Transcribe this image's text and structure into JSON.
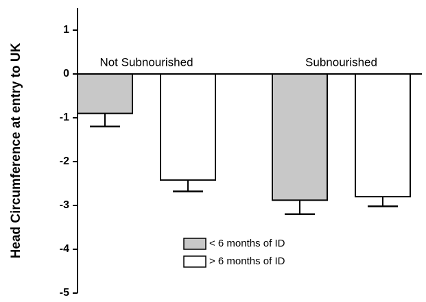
{
  "chart_data": {
    "type": "bar",
    "ylabel": "Head Circumference at entry to UK",
    "categories": [
      "Not  Subnourished",
      "Subnourished"
    ],
    "series": [
      {
        "name": "< 6 months of ID",
        "color": "#c8c8c8",
        "values": [
          -0.9,
          -2.88
        ],
        "errors": [
          0.3,
          0.32
        ]
      },
      {
        "name": "> 6 months of ID",
        "color": "#ffffff",
        "values": [
          -2.42,
          -2.8
        ],
        "errors": [
          0.26,
          0.22
        ]
      }
    ],
    "ylim": [
      -5,
      1.5
    ],
    "yticks": [
      -5,
      -4,
      -3,
      -2,
      -1,
      0,
      1
    ],
    "legend": "lower center",
    "grid": false
  }
}
